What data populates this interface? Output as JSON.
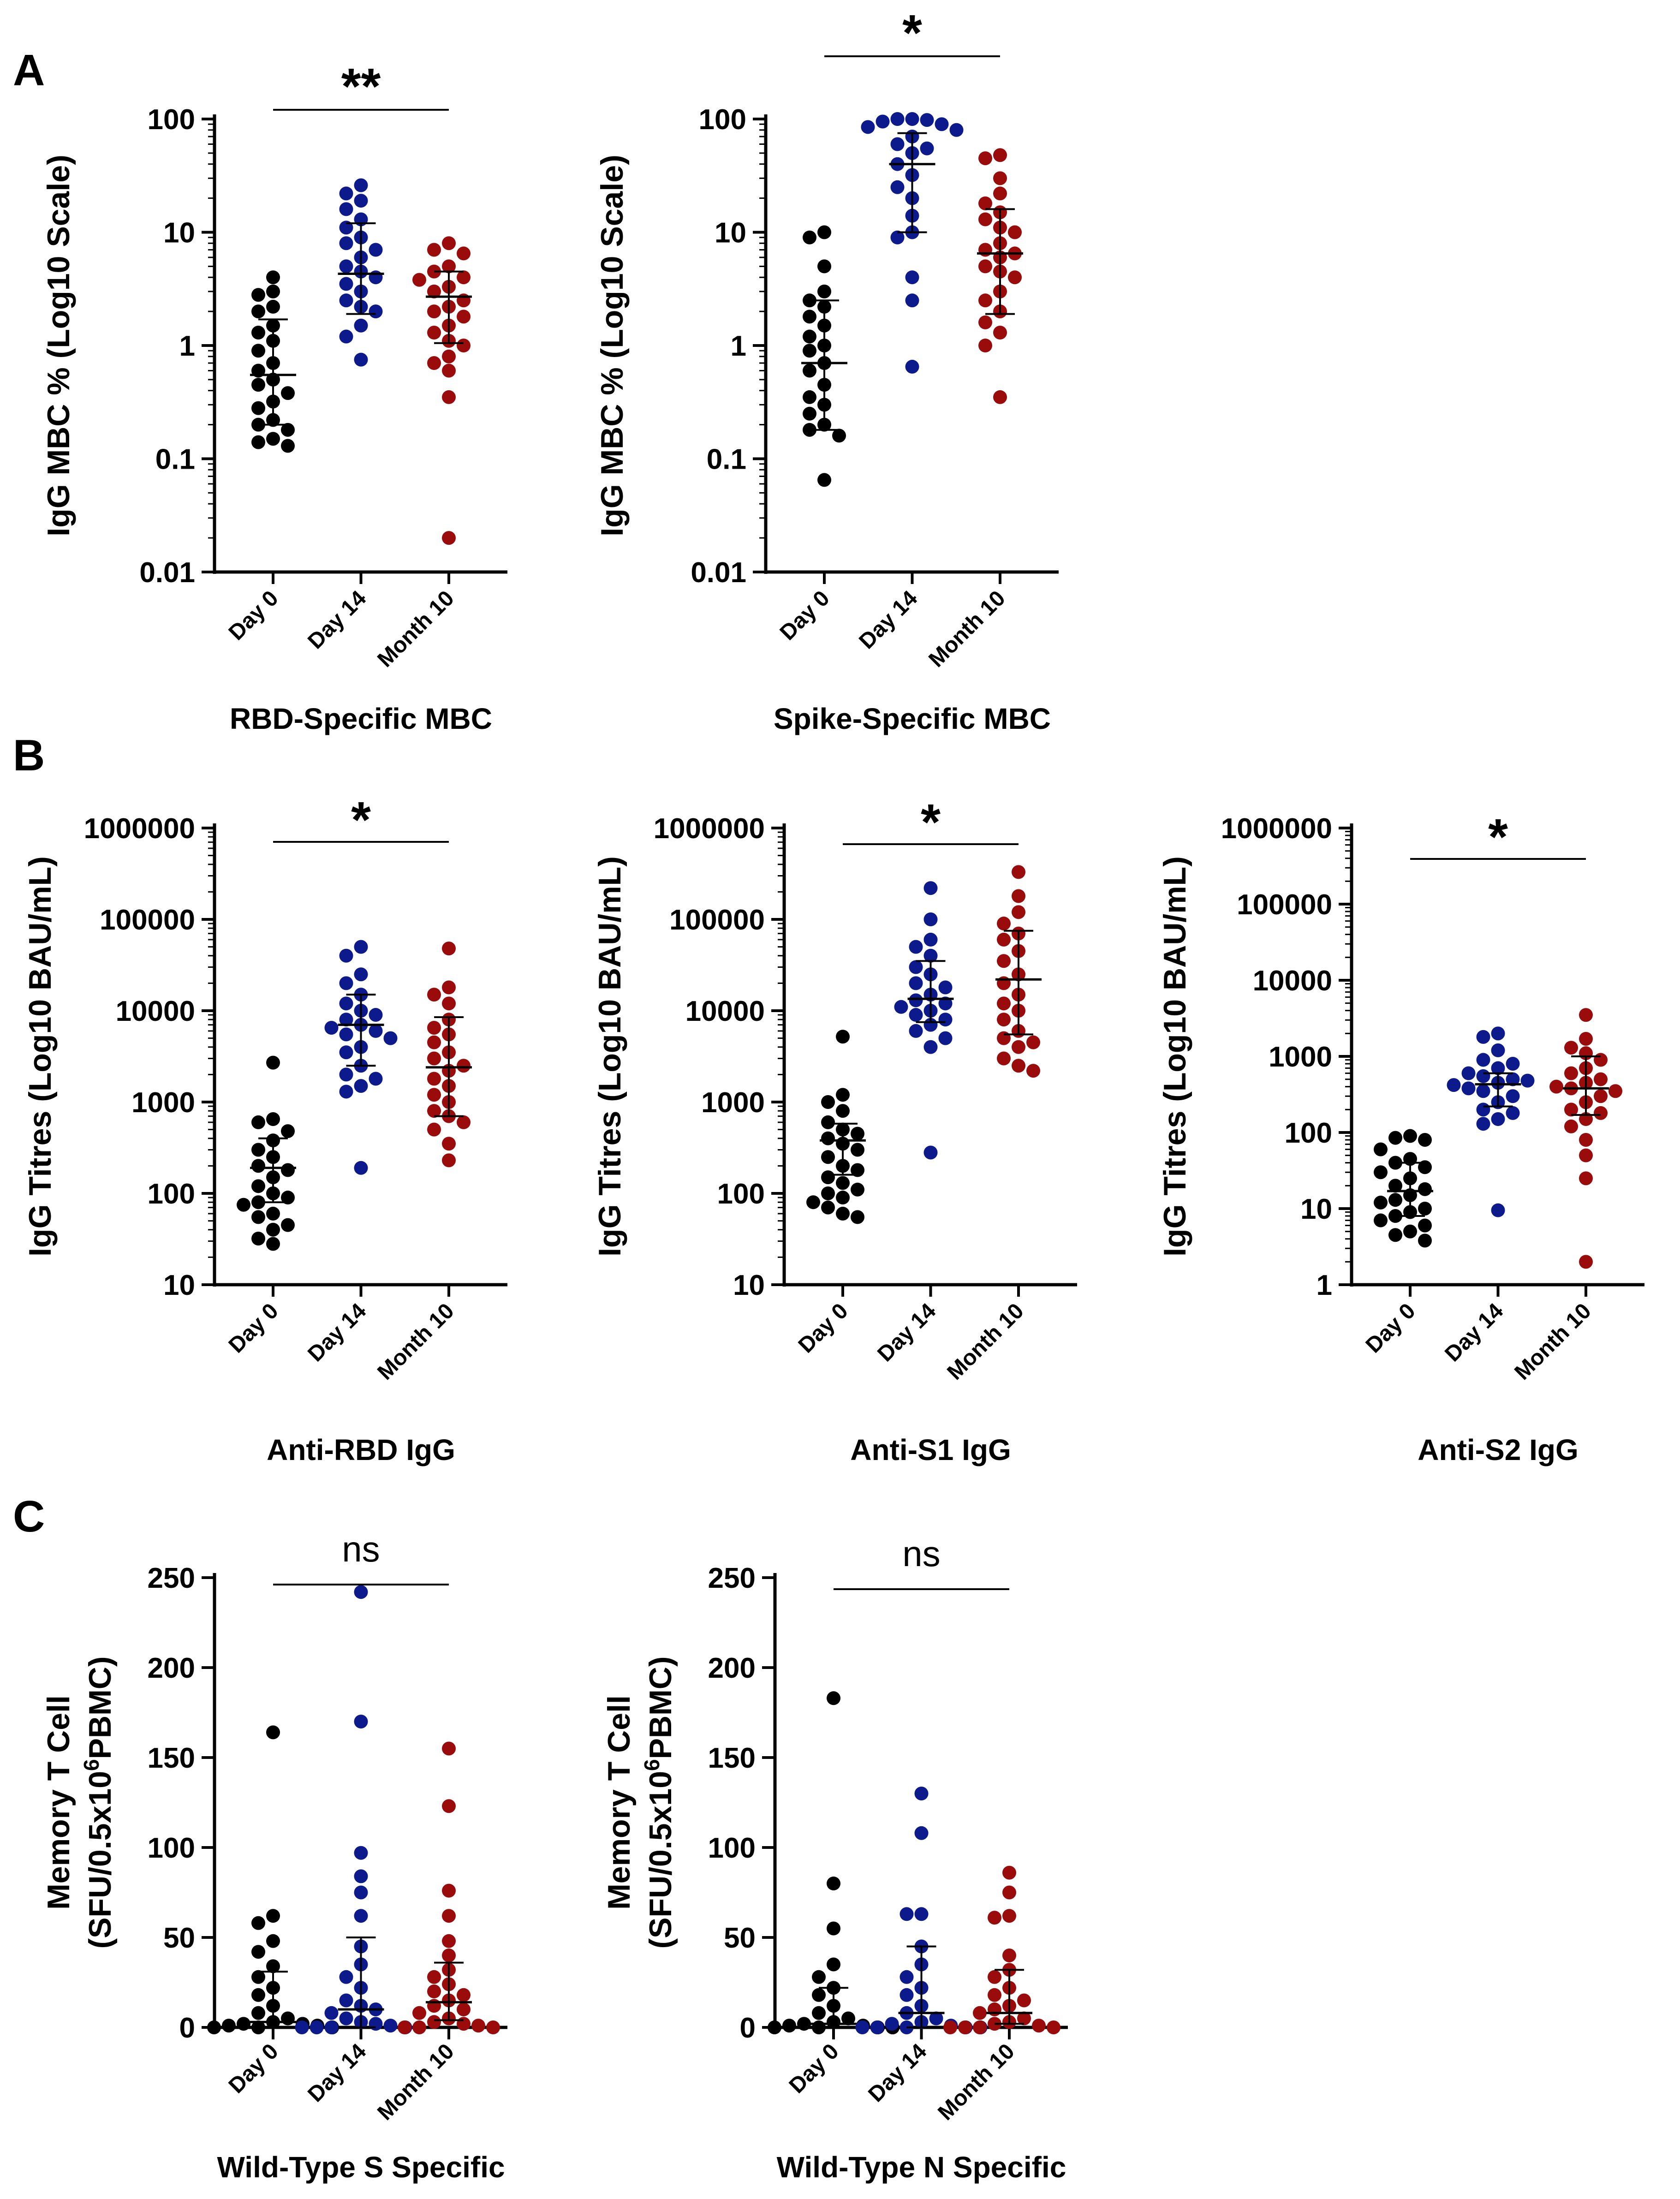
{
  "panel_labels": [
    "A",
    "B",
    "C"
  ],
  "colors": {
    "day0": "#000000",
    "day14": "#0c1a8c",
    "month10": "#9a0b0b"
  },
  "groups": [
    "Day 0",
    "Day 14",
    "Month 10"
  ],
  "chart_data": [
    {
      "type": "scatter",
      "panel": "A",
      "title": "RBD-Specific MBC",
      "ylabel": "IgG MBC % (Log10 Scale)",
      "yscale": "log",
      "ylim": [
        0.01,
        100
      ],
      "yticks": [
        0.01,
        0.1,
        1,
        10,
        100
      ],
      "ytick_labels": [
        "0.01",
        "0.1",
        "1",
        "10",
        "100"
      ],
      "categories": [
        "Day 0",
        "Day 14",
        "Month 10"
      ],
      "significance": "**",
      "series": [
        {
          "name": "Day 0",
          "values": [
            4,
            3,
            2.8,
            2.2,
            2,
            1.5,
            1.3,
            1.1,
            0.9,
            0.7,
            0.6,
            0.5,
            0.45,
            0.38,
            0.32,
            0.28,
            0.22,
            0.2,
            0.18,
            0.15,
            0.14,
            0.13
          ],
          "median": 0.55,
          "iqr": [
            0.2,
            1.7
          ]
        },
        {
          "name": "Day 14",
          "values": [
            26,
            22,
            19,
            16,
            13,
            11,
            9,
            8,
            7,
            6,
            5,
            4.5,
            4,
            3.5,
            3,
            2.5,
            2.2,
            2,
            1.5,
            1.2,
            0.75
          ],
          "median": 4.3,
          "iqr": [
            1.9,
            12
          ]
        },
        {
          "name": "Month 10",
          "values": [
            8,
            7,
            6.5,
            5,
            4.5,
            4,
            3.8,
            3.3,
            3,
            2.5,
            2.2,
            2,
            1.8,
            1.5,
            1.3,
            1.1,
            1,
            0.8,
            0.7,
            0.6,
            0.35,
            0.02
          ],
          "median": 2.7,
          "iqr": [
            1.05,
            4.5
          ]
        }
      ]
    },
    {
      "type": "scatter",
      "panel": "A",
      "title": "Spike-Specific MBC",
      "ylabel": "IgG MBC % (Log10 Scale)",
      "yscale": "log",
      "ylim": [
        0.01,
        100
      ],
      "yticks": [
        0.01,
        0.1,
        1,
        10,
        100
      ],
      "ytick_labels": [
        "0.01",
        "0.1",
        "1",
        "10",
        "100"
      ],
      "categories": [
        "Day 0",
        "Day 14",
        "Month 10"
      ],
      "significance": "*",
      "series": [
        {
          "name": "Day 0",
          "values": [
            10,
            9,
            5,
            3,
            2.5,
            2.2,
            1.8,
            1.5,
            1.2,
            1,
            0.9,
            0.7,
            0.6,
            0.45,
            0.35,
            0.3,
            0.25,
            0.2,
            0.18,
            0.16,
            0.065
          ],
          "median": 0.7,
          "iqr": [
            0.18,
            2.5
          ]
        },
        {
          "name": "Day 14",
          "values": [
            100,
            100,
            98,
            95,
            90,
            85,
            80,
            70,
            60,
            55,
            50,
            40,
            32,
            25,
            20,
            14,
            10,
            9,
            4,
            2.5,
            0.65
          ],
          "median": 40,
          "iqr": [
            10,
            75
          ]
        },
        {
          "name": "Month 10",
          "values": [
            48,
            45,
            30,
            22,
            18,
            15,
            13,
            11,
            10,
            8,
            7,
            6.5,
            6,
            5,
            4.5,
            4,
            3,
            2.5,
            2,
            1.6,
            1.3,
            1,
            0.35
          ],
          "median": 6.5,
          "iqr": [
            1.9,
            16
          ]
        }
      ]
    },
    {
      "type": "scatter",
      "panel": "B",
      "title": "Anti-RBD IgG",
      "ylabel": "IgG Titres (Log10 BAU/mL)",
      "yscale": "log",
      "ylim": [
        10,
        1000000
      ],
      "yticks": [
        10,
        100,
        1000,
        10000,
        100000,
        1000000
      ],
      "ytick_labels": [
        "10",
        "100",
        "1000",
        "10000",
        "100000",
        "1000000"
      ],
      "categories": [
        "Day 0",
        "Day 14",
        "Month 10"
      ],
      "significance": "*",
      "series": [
        {
          "name": "Day 0",
          "values": [
            2700,
            650,
            600,
            480,
            380,
            300,
            250,
            200,
            180,
            150,
            120,
            100,
            90,
            80,
            75,
            60,
            55,
            45,
            40,
            32,
            28
          ],
          "median": 190,
          "iqr": [
            80,
            400
          ]
        },
        {
          "name": "Day 14",
          "values": [
            50000,
            40000,
            25000,
            20000,
            15000,
            12000,
            10000,
            9000,
            8000,
            7000,
            6500,
            6000,
            5500,
            5000,
            4000,
            3500,
            2500,
            2000,
            1800,
            1500,
            1300,
            190
          ],
          "median": 7000,
          "iqr": [
            2500,
            15000
          ]
        },
        {
          "name": "Month 10",
          "values": [
            48000,
            18000,
            15000,
            12000,
            8000,
            6500,
            5500,
            4500,
            3500,
            3000,
            2500,
            2200,
            1800,
            1500,
            1200,
            1000,
            800,
            700,
            600,
            500,
            350,
            230
          ],
          "median": 2400,
          "iqr": [
            700,
            8500
          ]
        }
      ]
    },
    {
      "type": "scatter",
      "panel": "B",
      "title": "Anti-S1 IgG",
      "ylabel": "IgG Titres (Log10 BAU/mL)",
      "yscale": "log",
      "ylim": [
        10,
        1000000
      ],
      "yticks": [
        10,
        100,
        1000,
        10000,
        100000,
        1000000
      ],
      "ytick_labels": [
        "10",
        "100",
        "1000",
        "10000",
        "100000",
        "1000000"
      ],
      "categories": [
        "Day 0",
        "Day 14",
        "Month 10"
      ],
      "significance": "*",
      "series": [
        {
          "name": "Day 0",
          "values": [
            5200,
            1200,
            1000,
            800,
            600,
            500,
            450,
            400,
            350,
            300,
            250,
            200,
            180,
            150,
            130,
            110,
            100,
            90,
            80,
            70,
            60,
            55
          ],
          "median": 380,
          "iqr": [
            160,
            580
          ]
        },
        {
          "name": "Day 14",
          "values": [
            220000,
            100000,
            60000,
            50000,
            40000,
            30000,
            25000,
            20000,
            18000,
            15000,
            13000,
            12000,
            11000,
            10000,
            9000,
            8000,
            7000,
            6000,
            5000,
            4000,
            280
          ],
          "median": 13500,
          "iqr": [
            7500,
            35000
          ]
        },
        {
          "name": "Month 10",
          "values": [
            330000,
            180000,
            120000,
            90000,
            70000,
            60000,
            45000,
            35000,
            25000,
            20000,
            15000,
            12000,
            10000,
            8000,
            6000,
            5000,
            4500,
            4000,
            3000,
            2500,
            2200
          ],
          "median": 22000,
          "iqr": [
            5500,
            75000
          ]
        }
      ]
    },
    {
      "type": "scatter",
      "panel": "B",
      "title": "Anti-S2 IgG",
      "ylabel": "IgG Titres (Log10 BAU/mL)",
      "yscale": "log",
      "ylim": [
        1,
        1000000
      ],
      "yticks": [
        1,
        10,
        100,
        1000,
        10000,
        100000,
        1000000
      ],
      "ytick_labels": [
        "1",
        "10",
        "100",
        "1000",
        "10000",
        "100000",
        "1000000"
      ],
      "categories": [
        "Day 0",
        "Day 14",
        "Month 10"
      ],
      "significance": "*",
      "series": [
        {
          "name": "Day 0",
          "values": [
            90,
            85,
            80,
            60,
            45,
            40,
            35,
            30,
            25,
            20,
            18,
            15,
            13,
            12,
            10,
            9,
            8,
            7,
            6,
            5,
            4.5,
            3.8
          ],
          "median": 17,
          "iqr": [
            8,
            40
          ]
        },
        {
          "name": "Day 14",
          "values": [
            2000,
            1800,
            1200,
            900,
            800,
            700,
            600,
            550,
            500,
            480,
            450,
            420,
            380,
            350,
            300,
            250,
            200,
            180,
            150,
            130,
            9.5
          ],
          "median": 430,
          "iqr": [
            220,
            600
          ]
        },
        {
          "name": "Month 10",
          "values": [
            3500,
            1700,
            1300,
            1100,
            900,
            700,
            600,
            500,
            450,
            400,
            380,
            350,
            300,
            250,
            200,
            180,
            150,
            120,
            80,
            50,
            25,
            2
          ],
          "median": 380,
          "iqr": [
            170,
            1000
          ]
        }
      ]
    },
    {
      "type": "scatter",
      "panel": "C",
      "title": "Wild-Type S Specific",
      "ylabel": "Memory T Cell",
      "ylabel2": "(SFU/0.5x10",
      "ylabel2_sup": "6",
      "ylabel2_end": "PBMC)",
      "yscale": "linear",
      "ylim": [
        0,
        250
      ],
      "yticks": [
        0,
        50,
        100,
        150,
        200,
        250
      ],
      "ytick_labels": [
        "0",
        "50",
        "100",
        "150",
        "200",
        "250"
      ],
      "categories": [
        "Day 0",
        "Day 14",
        "Month 10"
      ],
      "significance": "ns",
      "series": [
        {
          "name": "Day 0",
          "values": [
            164,
            62,
            58,
            48,
            42,
            34,
            28,
            22,
            18,
            12,
            8,
            5,
            3,
            2,
            2,
            1,
            1,
            0,
            0,
            0,
            0,
            0
          ],
          "median": 3,
          "iqr": [
            0,
            31
          ]
        },
        {
          "name": "Day 14",
          "values": [
            242,
            170,
            97,
            84,
            75,
            62,
            45,
            35,
            28,
            22,
            15,
            12,
            10,
            8,
            5,
            3,
            2,
            1,
            0,
            0,
            0,
            0
          ],
          "median": 10,
          "iqr": [
            0,
            50
          ]
        },
        {
          "name": "Month 10",
          "values": [
            155,
            123,
            76,
            62,
            48,
            40,
            32,
            28,
            24,
            20,
            18,
            15,
            12,
            10,
            8,
            5,
            3,
            2,
            1,
            0,
            0,
            0
          ],
          "median": 14,
          "iqr": [
            4,
            36
          ]
        }
      ]
    },
    {
      "type": "scatter",
      "panel": "C",
      "title": "Wild-Type N Specific",
      "ylabel": "Memory T Cell",
      "ylabel2": "(SFU/0.5x10",
      "ylabel2_sup": "6",
      "ylabel2_end": "PBMC)",
      "yscale": "linear",
      "ylim": [
        0,
        250
      ],
      "yticks": [
        0,
        50,
        100,
        150,
        200,
        250
      ],
      "ytick_labels": [
        "0",
        "50",
        "100",
        "150",
        "200",
        "250"
      ],
      "categories": [
        "Day 0",
        "Day 14",
        "Month 10"
      ],
      "significance": "ns",
      "series": [
        {
          "name": "Day 0",
          "values": [
            183,
            80,
            55,
            35,
            28,
            22,
            18,
            12,
            8,
            5,
            3,
            2,
            1,
            1,
            0,
            0,
            0,
            0,
            0,
            0,
            0
          ],
          "median": 2,
          "iqr": [
            0,
            22
          ]
        },
        {
          "name": "Day 14",
          "values": [
            130,
            108,
            63,
            63,
            45,
            35,
            28,
            22,
            18,
            12,
            8,
            5,
            3,
            2,
            1,
            0,
            0,
            0,
            0,
            0,
            0
          ],
          "median": 8,
          "iqr": [
            0,
            45
          ]
        },
        {
          "name": "Month 10",
          "values": [
            86,
            75,
            62,
            61,
            40,
            32,
            28,
            22,
            18,
            15,
            12,
            10,
            8,
            5,
            3,
            2,
            1,
            0,
            0,
            0,
            0
          ],
          "median": 8,
          "iqr": [
            2,
            32
          ]
        }
      ]
    }
  ]
}
